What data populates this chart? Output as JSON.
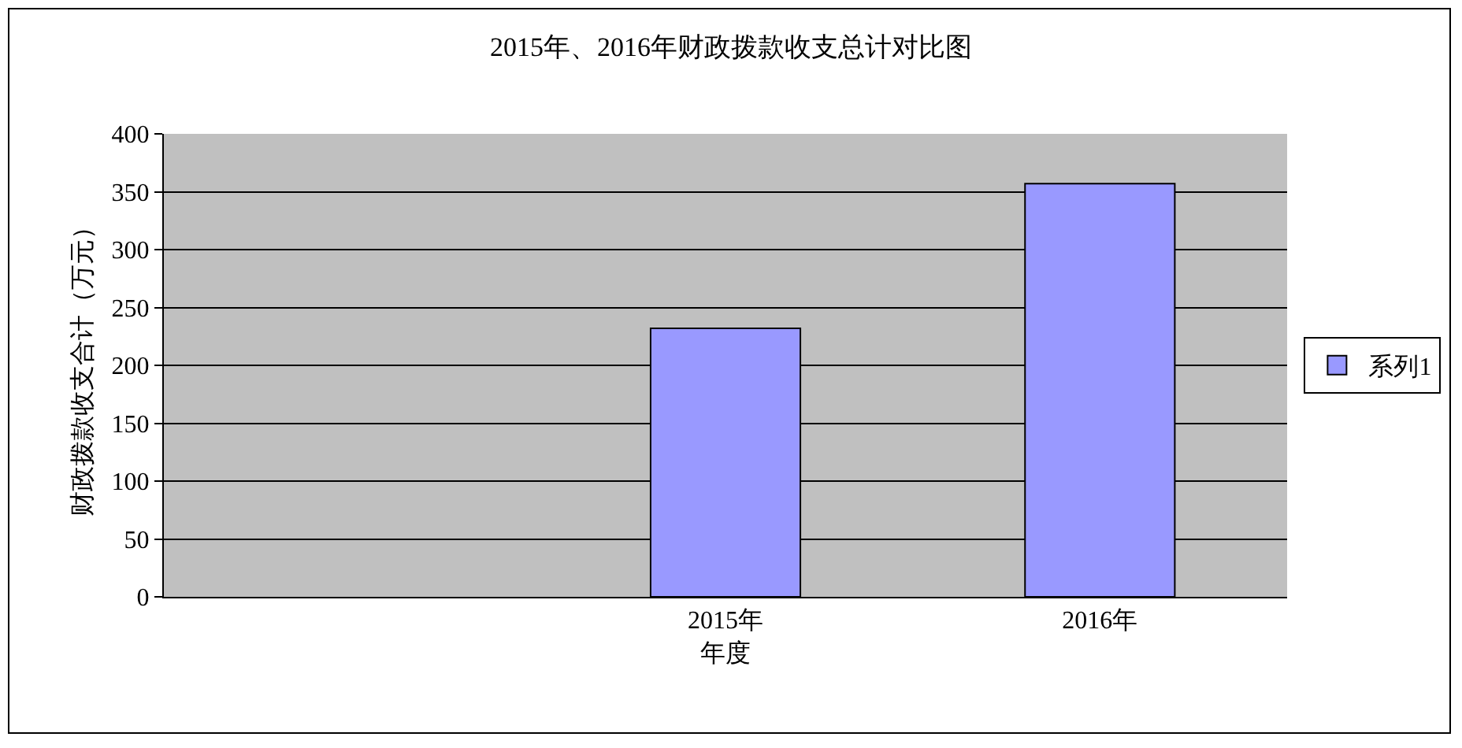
{
  "chart_data": {
    "type": "bar",
    "title": "2015年、2016年财政拨款收支总计对比图",
    "xlabel": "年度",
    "ylabel": "财政拨款收支合计（万元）",
    "categories": [
      null,
      "2015年",
      "2016年"
    ],
    "series": [
      {
        "name": "系列1",
        "color": "#9999ff",
        "values": [
          null,
          232,
          357
        ]
      }
    ],
    "ylim": [
      0,
      400
    ],
    "yticks": [
      0,
      50,
      100,
      150,
      200,
      250,
      300,
      350,
      400
    ],
    "grid": "y",
    "legend": "right"
  }
}
